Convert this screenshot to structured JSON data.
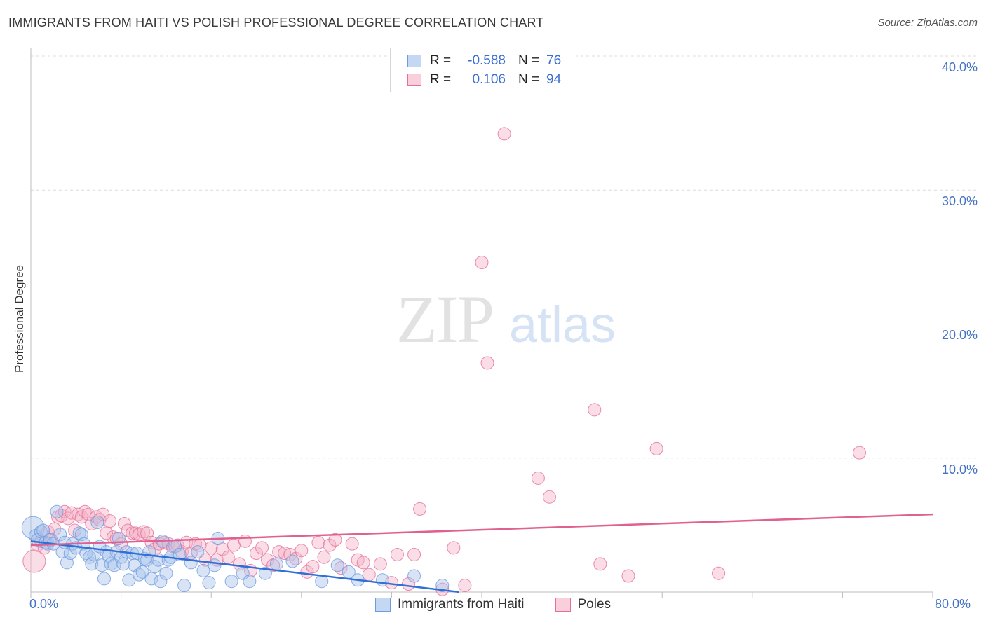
{
  "header": {
    "title": "IMMIGRANTS FROM HAITI VS POLISH PROFESSIONAL DEGREE CORRELATION CHART",
    "source": "Source: ZipAtlas.com"
  },
  "watermark": {
    "zip": "ZIP",
    "atlas": "atlas"
  },
  "legend": {
    "rows": [
      {
        "r_label": "R =",
        "r_value": "-0.588",
        "n_label": "N =",
        "n_value": "76",
        "color": "#a9c4ec"
      },
      {
        "r_label": "R =",
        "r_value": "0.106",
        "n_label": "N =",
        "n_value": "94",
        "color": "#f5b3c8"
      }
    ]
  },
  "bottom_legend": {
    "haiti": "Immigrants from Haiti",
    "poles": "Poles"
  },
  "chart_data": {
    "type": "scatter",
    "title": "IMMIGRANTS FROM HAITI VS POLISH PROFESSIONAL DEGREE CORRELATION CHART",
    "xlabel": "",
    "ylabel": "Professional Degree",
    "xlim": [
      0,
      80
    ],
    "ylim": [
      0,
      40
    ],
    "x_tick_labels": [
      "0.0%",
      "80.0%"
    ],
    "y_ticks": [
      10,
      20,
      30,
      40
    ],
    "y_tick_labels": [
      "10.0%",
      "20.0%",
      "30.0%",
      "40.0%"
    ],
    "grid": true,
    "legend_position": "top-center",
    "series": [
      {
        "name": "Immigrants from Haiti",
        "color": "#6f9be0",
        "fill": "#a9c4ec",
        "r": -0.588,
        "n": 76,
        "trend": {
          "x": [
            0,
            38
          ],
          "y": [
            3.8,
            0.0
          ]
        },
        "points": [
          [
            0.2,
            4.8
          ],
          [
            0.4,
            4.2
          ],
          [
            0.6,
            3.9
          ],
          [
            0.9,
            4.5
          ],
          [
            1.1,
            4.6
          ],
          [
            1.3,
            3.7
          ],
          [
            1.5,
            3.6
          ],
          [
            1.7,
            3.9
          ],
          [
            2.0,
            3.6
          ],
          [
            2.3,
            6.0
          ],
          [
            2.6,
            4.3
          ],
          [
            2.8,
            3.0
          ],
          [
            3.0,
            3.7
          ],
          [
            3.2,
            2.2
          ],
          [
            3.5,
            2.9
          ],
          [
            3.7,
            3.6
          ],
          [
            4.0,
            3.3
          ],
          [
            4.3,
            4.4
          ],
          [
            4.5,
            4.3
          ],
          [
            4.7,
            3.6
          ],
          [
            4.9,
            2.9
          ],
          [
            5.2,
            2.6
          ],
          [
            5.4,
            2.1
          ],
          [
            5.6,
            2.8
          ],
          [
            5.9,
            5.2
          ],
          [
            6.1,
            3.4
          ],
          [
            6.3,
            2.0
          ],
          [
            6.5,
            1.0
          ],
          [
            6.7,
            3.0
          ],
          [
            6.9,
            2.7
          ],
          [
            7.1,
            2.1
          ],
          [
            7.4,
            2.0
          ],
          [
            7.6,
            3.0
          ],
          [
            7.8,
            4.0
          ],
          [
            8.0,
            2.6
          ],
          [
            8.2,
            2.1
          ],
          [
            8.5,
            3.0
          ],
          [
            8.7,
            0.9
          ],
          [
            9.0,
            2.9
          ],
          [
            9.2,
            2.0
          ],
          [
            9.4,
            2.9
          ],
          [
            9.6,
            1.3
          ],
          [
            9.9,
            1.5
          ],
          [
            10.1,
            2.5
          ],
          [
            10.3,
            2.4
          ],
          [
            10.5,
            3.0
          ],
          [
            10.7,
            1.0
          ],
          [
            11.0,
            1.9
          ],
          [
            11.3,
            2.4
          ],
          [
            11.5,
            0.8
          ],
          [
            11.7,
            3.8
          ],
          [
            12.0,
            1.4
          ],
          [
            12.2,
            2.4
          ],
          [
            12.4,
            2.6
          ],
          [
            12.8,
            3.4
          ],
          [
            13.2,
            2.8
          ],
          [
            13.6,
            0.5
          ],
          [
            14.2,
            2.2
          ],
          [
            14.8,
            3.0
          ],
          [
            15.3,
            1.6
          ],
          [
            15.8,
            0.7
          ],
          [
            16.3,
            2.0
          ],
          [
            16.6,
            4.0
          ],
          [
            17.8,
            0.8
          ],
          [
            18.8,
            1.4
          ],
          [
            19.4,
            0.8
          ],
          [
            20.8,
            1.4
          ],
          [
            21.8,
            2.1
          ],
          [
            23.2,
            2.3
          ],
          [
            25.8,
            0.8
          ],
          [
            27.2,
            2.0
          ],
          [
            28.2,
            1.5
          ],
          [
            29.0,
            0.9
          ],
          [
            31.2,
            0.9
          ],
          [
            34.0,
            1.2
          ],
          [
            36.5,
            0.5
          ]
        ]
      },
      {
        "name": "Poles",
        "color": "#e56f99",
        "fill": "#f5b3c8",
        "r": 0.106,
        "n": 94,
        "trend": {
          "x": [
            0,
            80
          ],
          "y": [
            3.5,
            5.8
          ]
        },
        "points": [
          [
            0.3,
            2.3
          ],
          [
            0.6,
            3.5
          ],
          [
            0.9,
            3.8
          ],
          [
            1.2,
            3.3
          ],
          [
            1.5,
            4.5
          ],
          [
            1.8,
            3.9
          ],
          [
            2.1,
            4.7
          ],
          [
            2.4,
            5.6
          ],
          [
            2.7,
            5.7
          ],
          [
            3.0,
            6.0
          ],
          [
            3.3,
            5.5
          ],
          [
            3.6,
            5.9
          ],
          [
            3.9,
            4.6
          ],
          [
            4.2,
            5.8
          ],
          [
            4.5,
            5.6
          ],
          [
            4.8,
            6.0
          ],
          [
            5.1,
            5.8
          ],
          [
            5.4,
            5.1
          ],
          [
            5.8,
            5.6
          ],
          [
            6.1,
            5.4
          ],
          [
            6.4,
            5.8
          ],
          [
            6.7,
            4.4
          ],
          [
            7.0,
            5.3
          ],
          [
            7.3,
            4.1
          ],
          [
            7.6,
            4.0
          ],
          [
            8.0,
            3.6
          ],
          [
            8.3,
            5.1
          ],
          [
            8.6,
            4.6
          ],
          [
            9.0,
            4.4
          ],
          [
            9.3,
            4.4
          ],
          [
            9.6,
            4.3
          ],
          [
            10.0,
            4.5
          ],
          [
            10.3,
            4.4
          ],
          [
            10.7,
            3.7
          ],
          [
            11.0,
            3.2
          ],
          [
            11.4,
            3.6
          ],
          [
            11.8,
            3.7
          ],
          [
            12.2,
            3.6
          ],
          [
            12.6,
            3.4
          ],
          [
            13.0,
            3.5
          ],
          [
            13.4,
            3.0
          ],
          [
            13.8,
            3.7
          ],
          [
            14.2,
            2.9
          ],
          [
            14.6,
            3.6
          ],
          [
            15.0,
            3.5
          ],
          [
            15.5,
            2.4
          ],
          [
            16.0,
            3.3
          ],
          [
            16.5,
            2.4
          ],
          [
            17.0,
            3.2
          ],
          [
            17.5,
            2.6
          ],
          [
            18.0,
            3.5
          ],
          [
            18.5,
            2.1
          ],
          [
            19.0,
            3.8
          ],
          [
            19.5,
            1.6
          ],
          [
            20.0,
            2.9
          ],
          [
            20.5,
            3.3
          ],
          [
            21.0,
            2.4
          ],
          [
            21.5,
            2.0
          ],
          [
            22.0,
            3.0
          ],
          [
            22.5,
            2.9
          ],
          [
            23.0,
            2.8
          ],
          [
            23.5,
            2.5
          ],
          [
            24.0,
            3.1
          ],
          [
            24.5,
            1.5
          ],
          [
            25.0,
            1.9
          ],
          [
            25.5,
            3.7
          ],
          [
            26.0,
            2.6
          ],
          [
            26.5,
            3.5
          ],
          [
            27.0,
            3.9
          ],
          [
            27.5,
            1.8
          ],
          [
            28.5,
            3.6
          ],
          [
            29.0,
            2.4
          ],
          [
            29.5,
            2.2
          ],
          [
            30.0,
            1.3
          ],
          [
            31.0,
            2.1
          ],
          [
            32.0,
            0.7
          ],
          [
            32.5,
            2.8
          ],
          [
            33.5,
            0.6
          ],
          [
            34.0,
            2.8
          ],
          [
            34.5,
            6.2
          ],
          [
            36.5,
            0.2
          ],
          [
            37.5,
            3.3
          ],
          [
            38.5,
            0.5
          ],
          [
            42.0,
            34.2
          ],
          [
            40.0,
            24.6
          ],
          [
            40.5,
            17.1
          ],
          [
            50.0,
            13.6
          ],
          [
            55.5,
            10.7
          ],
          [
            73.5,
            10.4
          ],
          [
            45.0,
            8.5
          ],
          [
            46.0,
            7.1
          ],
          [
            50.5,
            2.1
          ],
          [
            53.0,
            1.2
          ],
          [
            61.0,
            1.4
          ]
        ]
      }
    ]
  }
}
